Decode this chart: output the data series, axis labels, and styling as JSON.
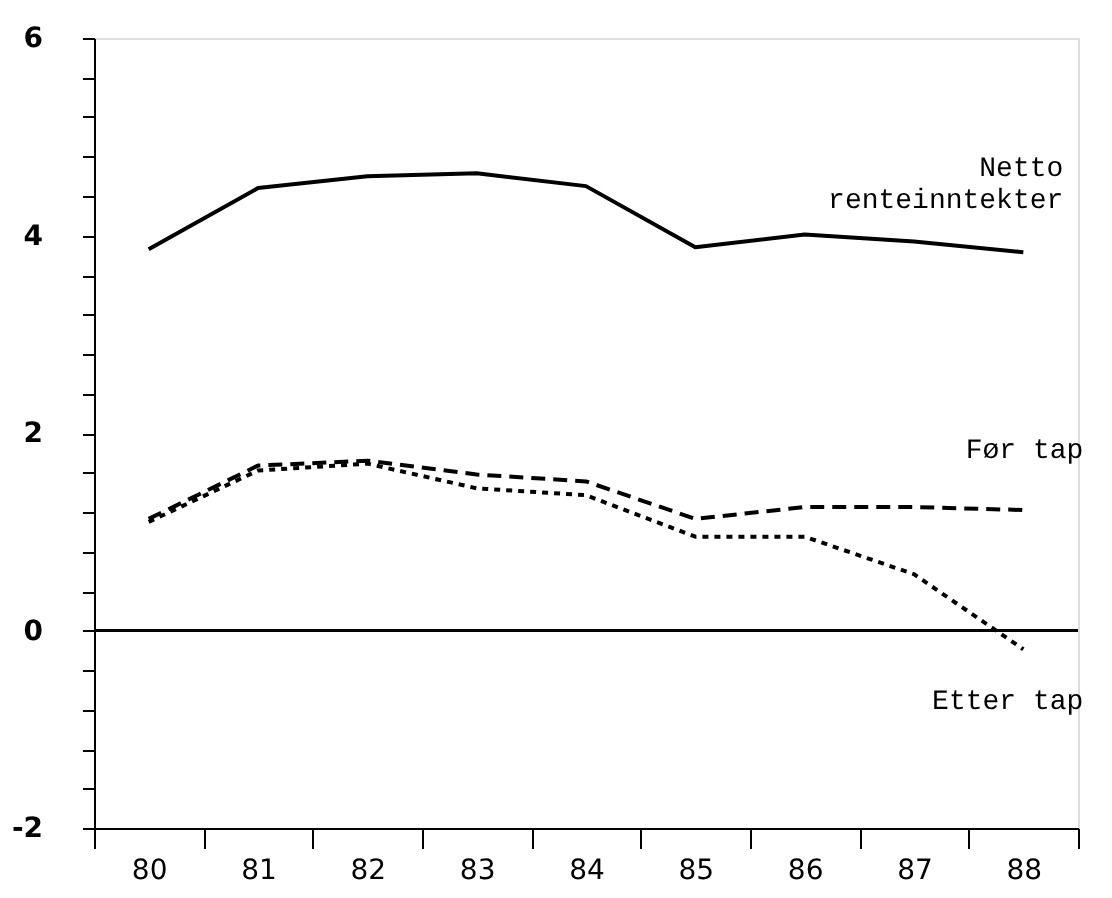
{
  "chart_data": {
    "type": "line",
    "categories": [
      "80",
      "81",
      "82",
      "83",
      "84",
      "85",
      "86",
      "87",
      "88"
    ],
    "series": [
      {
        "name": "Netto renteinntekter",
        "color": "#000000",
        "line_style": "solid",
        "values": [
          3.86,
          4.48,
          4.6,
          4.63,
          4.5,
          3.88,
          4.01,
          3.94,
          3.83
        ]
      },
      {
        "name": "Før tap",
        "color": "#000000",
        "line_style": "dashed",
        "values": [
          1.13,
          1.67,
          1.72,
          1.58,
          1.51,
          1.13,
          1.25,
          1.25,
          1.22
        ]
      },
      {
        "name": "Etter tap",
        "color": "#000000",
        "line_style": "dotted",
        "values": [
          1.1,
          1.62,
          1.69,
          1.44,
          1.37,
          0.95,
          0.95,
          0.57,
          -0.19
        ]
      }
    ],
    "ylim": [
      -2,
      6
    ],
    "yticks": [
      -2,
      {
        "value": -1.6,
        "label": null
      },
      {
        "value": -1.2,
        "label": null
      },
      {
        "value": -0.8,
        "label": null
      },
      {
        "value": -0.4,
        "label": null
      },
      0,
      {
        "value": 0.4,
        "label": null
      },
      {
        "value": 0.8,
        "label": null
      },
      {
        "value": 1.2,
        "label": null
      },
      {
        "value": 1.6,
        "label": null
      },
      2,
      {
        "value": 2.4,
        "label": null
      },
      {
        "value": 2.8,
        "label": null
      },
      {
        "value": 3.2,
        "label": null
      },
      {
        "value": 3.6,
        "label": null
      },
      4,
      {
        "value": 4.4,
        "label": null
      },
      {
        "value": 4.8,
        "label": null
      },
      {
        "value": 5.2,
        "label": null
      },
      {
        "value": 5.6,
        "label": null
      },
      6
    ],
    "ref_lines": [
      {
        "axis": "y",
        "value": 0,
        "color": "#000000",
        "line_style": "solid"
      }
    ]
  }
}
